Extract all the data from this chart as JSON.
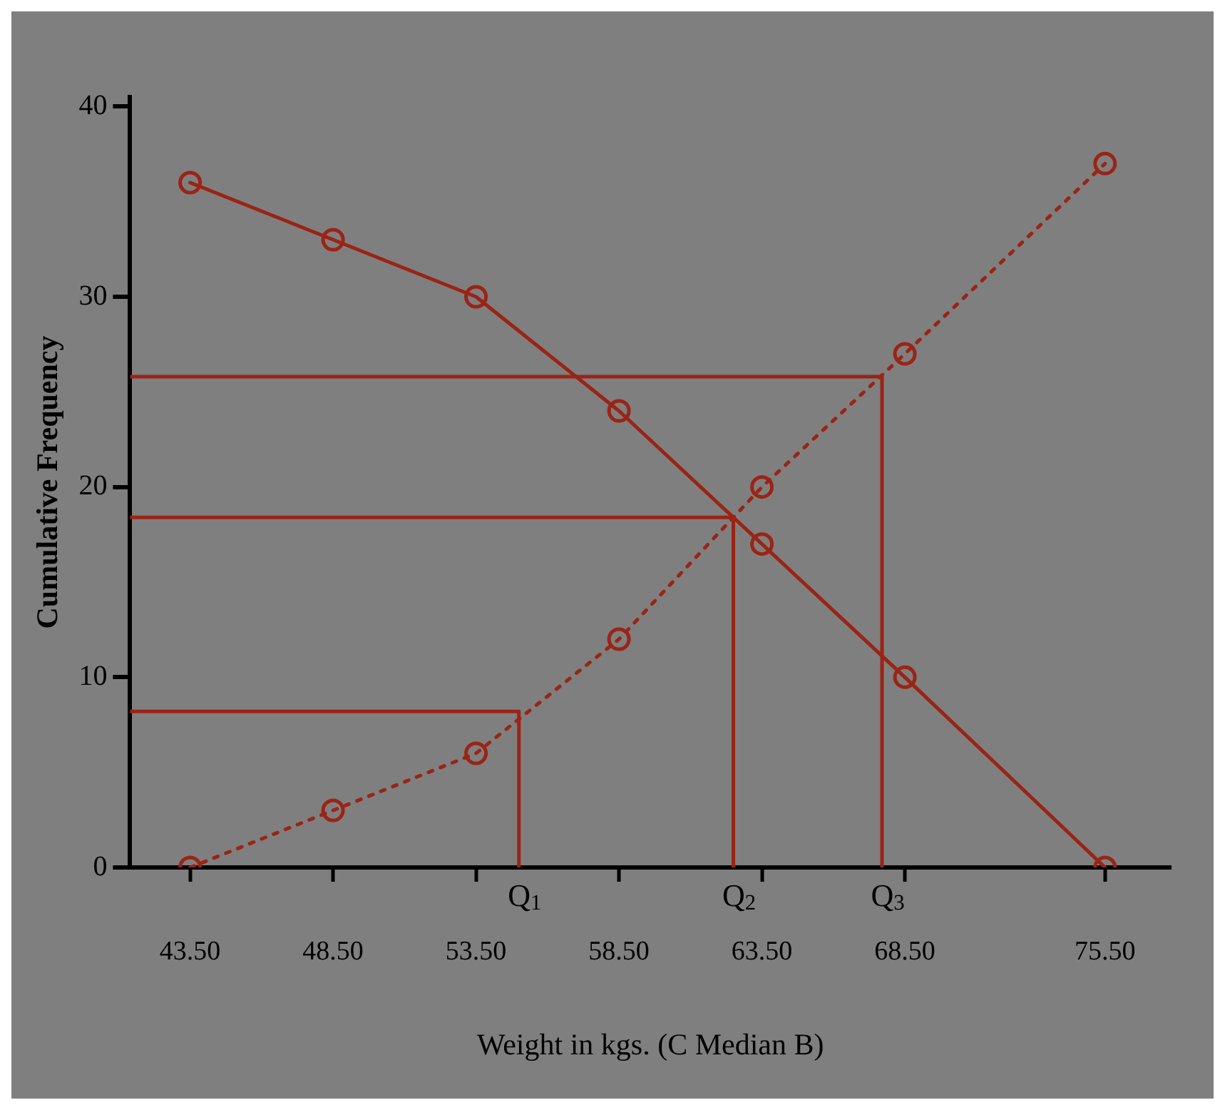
{
  "chart_data": {
    "type": "line",
    "xlabel": "Weight in kgs. (C Median B)",
    "ylabel": "Cumulative Frequency",
    "xlim": [
      41.4,
      77.8
    ],
    "ylim": [
      0,
      40.5
    ],
    "xticks": [
      {
        "value": 43.5,
        "label": "43.50"
      },
      {
        "value": 48.5,
        "label": "48.50"
      },
      {
        "value": 53.5,
        "label": "53.50"
      },
      {
        "value": 58.5,
        "label": "58.50"
      },
      {
        "value": 63.5,
        "label": "63.50"
      },
      {
        "value": 68.5,
        "label": "68.50"
      },
      {
        "value": 75.5,
        "label": "75.50"
      }
    ],
    "yticks": [
      0,
      10,
      20,
      30,
      40
    ],
    "grid": false,
    "legend": false,
    "series": [
      {
        "color": "#9a2416",
        "line_style": "dotted",
        "marker": "circle",
        "x": [
          43.5,
          48.5,
          53.5,
          58.5,
          63.5,
          68.5,
          75.5
        ],
        "values": [
          0,
          3,
          6,
          12,
          20,
          27,
          37
        ]
      },
      {
        "color": "#9a2416",
        "line_style": "solid",
        "marker": "circle",
        "x": [
          43.5,
          48.5,
          53.5,
          58.5,
          63.5,
          68.5,
          75.5
        ],
        "values": [
          36,
          33,
          30,
          24,
          17,
          10,
          0
        ]
      },
      {
        "color": "#9a2416",
        "line_style": "solid",
        "marker": "none",
        "x": [
          41.4,
          55.0,
          55.0
        ],
        "values": [
          8.2,
          8.2,
          0
        ]
      },
      {
        "color": "#9a2416",
        "line_style": "solid",
        "marker": "none",
        "x": [
          41.4,
          62.5,
          62.5
        ],
        "values": [
          18.4,
          18.4,
          0
        ]
      },
      {
        "color": "#9a2416",
        "line_style": "solid",
        "marker": "none",
        "x": [
          41.4,
          67.7,
          67.7
        ],
        "values": [
          25.8,
          25.8,
          0
        ]
      }
    ],
    "annotations": [
      {
        "text": "Q$_{1}$",
        "x": 55.0,
        "y": 0
      },
      {
        "text": "Q$_{2}$",
        "x": 62.5,
        "y": 0
      },
      {
        "text": "Q$_{3}$",
        "x": 67.7,
        "y": 0
      }
    ]
  }
}
